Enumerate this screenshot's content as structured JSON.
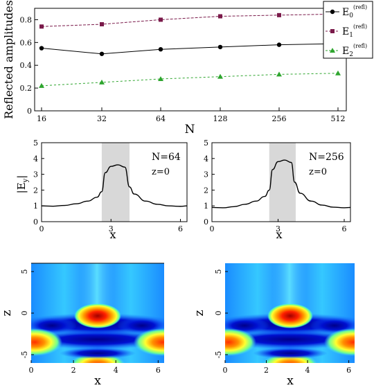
{
  "chart_data": [
    {
      "type": "line",
      "categories": [
        "16",
        "32",
        "64",
        "128",
        "256",
        "512"
      ],
      "ylabel": "Reflected amplitudes",
      "xlabel": "N",
      "ylim": [
        0,
        0.9
      ],
      "yticks": [
        "0",
        "0.2",
        "0.4",
        "0.6",
        "0.8"
      ],
      "legend_position": "top-right",
      "series": [
        {
          "name": "E",
          "sub": "0",
          "sup": "(refl)",
          "values": [
            0.55,
            0.5,
            0.54,
            0.56,
            0.58,
            0.59
          ],
          "color": "#000000",
          "marker": "circle"
        },
        {
          "name": "E",
          "sub": "1",
          "sup": "(refl)",
          "values": [
            0.74,
            0.76,
            0.8,
            0.83,
            0.84,
            0.85
          ],
          "color": "#7a1a4a",
          "marker": "square"
        },
        {
          "name": "E",
          "sub": "2",
          "sup": "(refl)",
          "values": [
            0.22,
            0.25,
            0.28,
            0.3,
            0.32,
            0.33
          ],
          "color": "#2ea52e",
          "marker": "triangle"
        }
      ]
    },
    {
      "type": "line",
      "ylabel": "|E",
      "ylabel_sub": "y",
      "ylabel_end": "|",
      "xlabel": "x",
      "annotation_n": "N=64",
      "annotation_z": "z=0",
      "xlim": [
        0,
        6.283
      ],
      "ylim": [
        0,
        5
      ],
      "xticks": [
        "0",
        "3",
        "6"
      ],
      "yticks": [
        "0",
        "1",
        "2",
        "3",
        "4",
        "5"
      ],
      "shaded_region": [
        2.6,
        3.8
      ],
      "series": [
        {
          "x": [
            0,
            0.5,
            1.0,
            1.5,
            2.0,
            2.4,
            2.6,
            2.75,
            3.0,
            3.3,
            3.6,
            3.8,
            4.0,
            4.5,
            5.0,
            5.5,
            6.0,
            6.283
          ],
          "y": [
            1.0,
            0.98,
            1.03,
            1.13,
            1.3,
            1.55,
            1.9,
            3.1,
            3.5,
            3.6,
            3.45,
            2.2,
            1.75,
            1.3,
            1.1,
            1.0,
            0.97,
            1.0
          ]
        }
      ]
    },
    {
      "type": "line",
      "xlabel": "x",
      "annotation_n": "N=256",
      "annotation_z": "z=0",
      "xlim": [
        0,
        6.283
      ],
      "ylim": [
        0,
        5
      ],
      "xticks": [
        "0",
        "3",
        "6"
      ],
      "yticks": [
        "0",
        "1",
        "2",
        "3",
        "4",
        "5"
      ],
      "shaded_region": [
        2.6,
        3.8
      ],
      "series": [
        {
          "x": [
            0,
            0.5,
            1.0,
            1.5,
            2.0,
            2.4,
            2.6,
            2.75,
            3.0,
            3.3,
            3.6,
            3.75,
            4.0,
            4.5,
            5.0,
            5.5,
            6.0,
            6.283
          ],
          "y": [
            0.9,
            0.88,
            0.95,
            1.1,
            1.3,
            1.6,
            2.0,
            3.3,
            3.8,
            3.9,
            3.75,
            2.5,
            1.8,
            1.3,
            1.05,
            0.92,
            0.88,
            0.9
          ]
        }
      ]
    },
    {
      "type": "heatmap",
      "xlabel": "x",
      "ylabel": "z",
      "xticks": [
        "0",
        "2",
        "4",
        "6"
      ],
      "yticks": [
        "5",
        "0",
        "-5"
      ],
      "xlim": [
        0,
        6.283
      ],
      "ylim": [
        -6,
        6
      ],
      "colormap": "jet"
    },
    {
      "type": "heatmap",
      "xlabel": "x",
      "ylabel": "z",
      "xticks": [
        "0",
        "2",
        "4",
        "6"
      ],
      "yticks": [
        "5",
        "0",
        "-5"
      ],
      "xlim": [
        0,
        6.283
      ],
      "ylim": [
        -6,
        6
      ],
      "colormap": "jet"
    }
  ]
}
